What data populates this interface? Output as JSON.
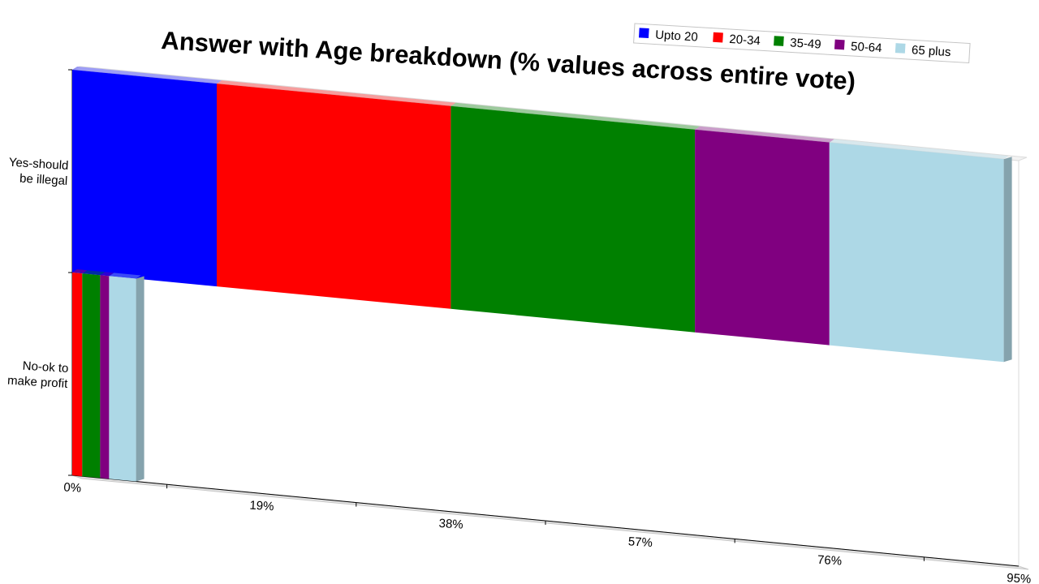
{
  "chart_data": {
    "type": "bar",
    "orientation": "horizontal",
    "stacked": true,
    "title": "Answer with Age breakdown (% values across entire vote)",
    "categories": [
      "Yes-should be illegal",
      "No-ok to make profit"
    ],
    "category_lines": [
      [
        "Yes-should",
        "be illegal"
      ],
      [
        "No-ok to",
        "make profit"
      ]
    ],
    "series": [
      {
        "name": "Upto 20",
        "color": "#0000ff",
        "values": [
          14.5,
          0.0
        ]
      },
      {
        "name": "20-34",
        "color": "#ff0000",
        "values": [
          23.5,
          1.0
        ]
      },
      {
        "name": "35-49",
        "color": "#008000",
        "values": [
          24.5,
          1.8
        ]
      },
      {
        "name": "50-64",
        "color": "#800080",
        "values": [
          13.5,
          0.9
        ]
      },
      {
        "name": "65 plus",
        "color": "#add8e6",
        "values": [
          17.5,
          2.7
        ]
      }
    ],
    "x_ticks": [
      "0%",
      "19%",
      "38%",
      "57%",
      "76%",
      "95%"
    ],
    "xlim": [
      0,
      95
    ],
    "legend_position": "top-right",
    "grid": false
  }
}
